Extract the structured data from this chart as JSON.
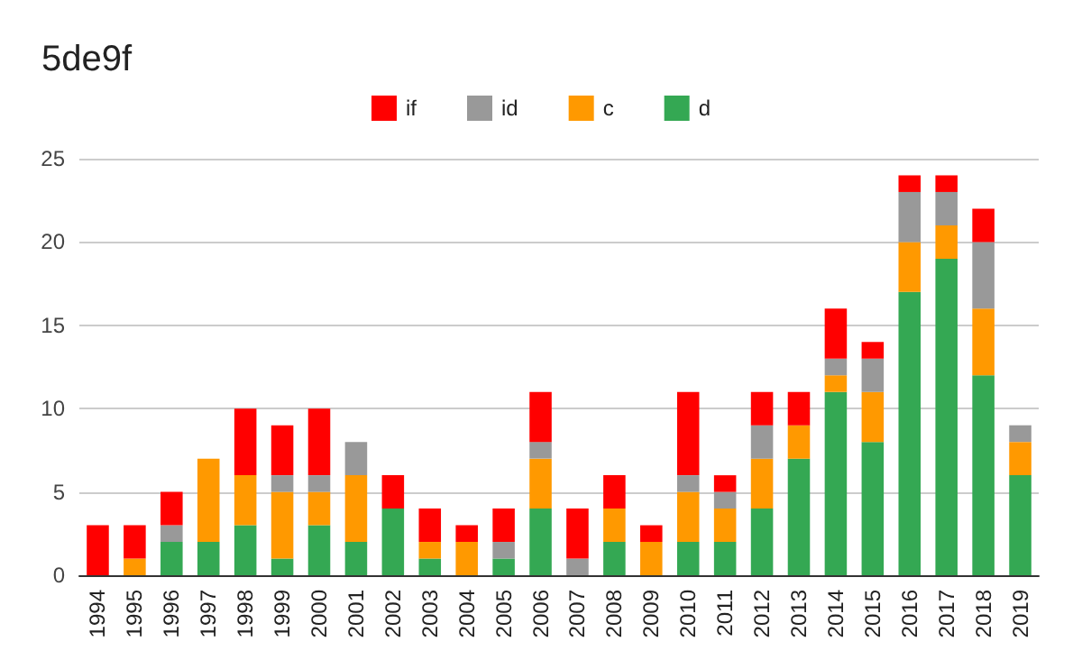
{
  "chart_data": {
    "type": "bar",
    "title": "5de9f",
    "stacked": true,
    "categories": [
      "1994",
      "1995",
      "1996",
      "1997",
      "1998",
      "1999",
      "2000",
      "2001",
      "2002",
      "2003",
      "2004",
      "2005",
      "2006",
      "2007",
      "2008",
      "2009",
      "2010",
      "2011",
      "2012",
      "2013",
      "2014",
      "2015",
      "2016",
      "2017",
      "2018",
      "2019"
    ],
    "series": [
      {
        "name": "d",
        "color": "#34a853",
        "values": [
          0,
          0,
          2,
          2,
          3,
          1,
          3,
          2,
          4,
          1,
          0,
          1,
          4,
          0,
          2,
          0,
          2,
          2,
          4,
          7,
          11,
          8,
          17,
          19,
          12,
          6
        ]
      },
      {
        "name": "c",
        "color": "#ff9900",
        "values": [
          0,
          1,
          0,
          5,
          3,
          4,
          2,
          4,
          0,
          1,
          2,
          0,
          3,
          0,
          2,
          2,
          3,
          2,
          3,
          2,
          1,
          3,
          3,
          2,
          4,
          2
        ]
      },
      {
        "name": "id",
        "color": "#999999",
        "values": [
          0,
          0,
          1,
          0,
          0,
          1,
          1,
          2,
          0,
          0,
          0,
          1,
          1,
          1,
          0,
          0,
          1,
          1,
          2,
          0,
          1,
          2,
          3,
          2,
          4,
          1
        ]
      },
      {
        "name": "if",
        "color": "#ff0000",
        "values": [
          3,
          2,
          2,
          0,
          4,
          3,
          4,
          0,
          2,
          2,
          1,
          2,
          3,
          3,
          2,
          1,
          5,
          1,
          2,
          2,
          3,
          1,
          1,
          1,
          2,
          0
        ]
      }
    ],
    "ylim": [
      0,
      25
    ],
    "yticks": [
      0,
      5,
      10,
      15,
      20,
      25
    ],
    "grid": "y",
    "legend": "top"
  }
}
